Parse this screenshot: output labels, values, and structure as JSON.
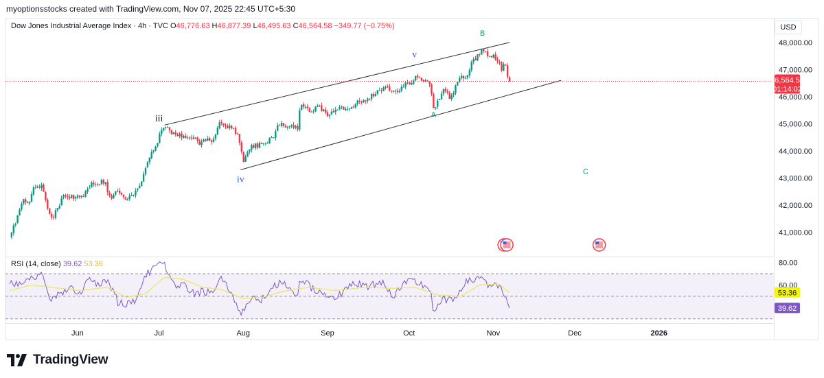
{
  "header": {
    "attribution": "myoptionsstocks created with TradingView.com, Nov 07, 2025 22:45 UTC+5:30"
  },
  "legend": {
    "symbol": "Dow Jones Industrial Average Index · 4h · TVC",
    "open_label": "O",
    "open": "46,776.63",
    "high_label": "H",
    "high": "46,877.39",
    "low_label": "L",
    "low": "46,495.63",
    "close_label": "C",
    "close": "46,564.58",
    "change": "−349.77 (−0.75%)"
  },
  "currency_button": "USD",
  "price_badge": {
    "price": "46,564.58",
    "countdown": "01:14:02"
  },
  "rsi_legend": {
    "label": "RSI (14, close)",
    "rsi_value": "39.62",
    "ma_value": "53.36"
  },
  "brand": {
    "name": "TradingView"
  },
  "colors": {
    "up": "#089981",
    "down": "#f23645",
    "rsi": "#7e57c2",
    "rsi_ma": "#e8e85c",
    "wave_blue": "#2962ff",
    "wave_teal": "#089981"
  },
  "event_markers": {
    "icon": "us-flag-icon",
    "dates": [
      "2025-11-05",
      "2025-11-06",
      "2025-12-10"
    ]
  },
  "chart_data": [
    {
      "type": "candlestick",
      "title": "Dow Jones Industrial Average Index · 4h · TVC",
      "x_ticks": [
        "Jun",
        "Jul",
        "Aug",
        "Sep",
        "Oct",
        "Nov",
        "Dec",
        "2026"
      ],
      "x_tick_dates": [
        "2025-06-01",
        "2025-07-01",
        "2025-08-01",
        "2025-09-01",
        "2025-10-01",
        "2025-11-01",
        "2025-12-01",
        "2026-01-01"
      ],
      "xlim": [
        "2025-05-06",
        "2026-02-10"
      ],
      "y_ticks": [
        "41,000.00",
        "42,000.00",
        "43,000.00",
        "44,000.00",
        "45,000.00",
        "46,000.00",
        "47,000.00",
        "48,000.00"
      ],
      "y_tick_values": [
        41000,
        42000,
        43000,
        44000,
        45000,
        46000,
        47000,
        48000
      ],
      "ylim": [
        40250,
        48350
      ],
      "last_price": 46564.58,
      "path_date_range": [
        "2025-05-07",
        "2025-11-07"
      ],
      "price_path": [
        [
          "2025-05-07",
          40800
        ],
        [
          "2025-05-09",
          41300
        ],
        [
          "2025-05-12",
          42150
        ],
        [
          "2025-05-14",
          42100
        ],
        [
          "2025-05-16",
          42650
        ],
        [
          "2025-05-19",
          42700
        ],
        [
          "2025-05-21",
          41800
        ],
        [
          "2025-05-22",
          41650
        ],
        [
          "2025-05-23",
          41550
        ],
        [
          "2025-05-27",
          42350
        ],
        [
          "2025-05-29",
          42300
        ],
        [
          "2025-06-02",
          42300
        ],
        [
          "2025-06-04",
          42450
        ],
        [
          "2025-06-06",
          42750
        ],
        [
          "2025-06-09",
          42800
        ],
        [
          "2025-06-11",
          42900
        ],
        [
          "2025-06-13",
          42250
        ],
        [
          "2025-06-16",
          42550
        ],
        [
          "2025-06-18",
          42200
        ],
        [
          "2025-06-20",
          42250
        ],
        [
          "2025-06-23",
          42550
        ],
        [
          "2025-06-25",
          43000
        ],
        [
          "2025-06-27",
          43700
        ],
        [
          "2025-06-30",
          44150
        ],
        [
          "2025-07-01",
          44600
        ],
        [
          "2025-07-03",
          44900
        ],
        [
          "2025-07-07",
          44550
        ],
        [
          "2025-07-09",
          44600
        ],
        [
          "2025-07-11",
          44400
        ],
        [
          "2025-07-14",
          44450
        ],
        [
          "2025-07-16",
          44200
        ],
        [
          "2025-07-18",
          44400
        ],
        [
          "2025-07-21",
          44350
        ],
        [
          "2025-07-23",
          45050
        ],
        [
          "2025-07-25",
          44950
        ],
        [
          "2025-07-28",
          44850
        ],
        [
          "2025-07-30",
          44600
        ],
        [
          "2025-08-01",
          43600
        ],
        [
          "2025-08-04",
          44150
        ],
        [
          "2025-08-06",
          44200
        ],
        [
          "2025-08-08",
          44200
        ],
        [
          "2025-08-12",
          44500
        ],
        [
          "2025-08-14",
          44950
        ],
        [
          "2025-08-15",
          44950
        ],
        [
          "2025-08-19",
          44900
        ],
        [
          "2025-08-21",
          44800
        ],
        [
          "2025-08-22",
          45650
        ],
        [
          "2025-08-26",
          45500
        ],
        [
          "2025-08-28",
          45650
        ],
        [
          "2025-09-02",
          45300
        ],
        [
          "2025-09-04",
          45600
        ],
        [
          "2025-09-08",
          45500
        ],
        [
          "2025-09-10",
          45600
        ],
        [
          "2025-09-12",
          45850
        ],
        [
          "2025-09-16",
          45900
        ],
        [
          "2025-09-18",
          46100
        ],
        [
          "2025-09-22",
          46350
        ],
        [
          "2025-09-24",
          46250
        ],
        [
          "2025-09-26",
          46200
        ],
        [
          "2025-09-30",
          46450
        ],
        [
          "2025-10-02",
          46550
        ],
        [
          "2025-10-03",
          46750
        ],
        [
          "2025-10-06",
          46650
        ],
        [
          "2025-10-08",
          46650
        ],
        [
          "2025-10-09",
          46400
        ],
        [
          "2025-10-10",
          45500
        ],
        [
          "2025-10-13",
          46100
        ],
        [
          "2025-10-14",
          46250
        ],
        [
          "2025-10-16",
          45950
        ],
        [
          "2025-10-20",
          46700
        ],
        [
          "2025-10-22",
          46650
        ],
        [
          "2025-10-24",
          47250
        ],
        [
          "2025-10-27",
          47600
        ],
        [
          "2025-10-28",
          47750
        ],
        [
          "2025-10-29",
          47600
        ],
        [
          "2025-10-30",
          47500
        ],
        [
          "2025-10-31",
          47550
        ],
        [
          "2025-11-03",
          47300
        ],
        [
          "2025-11-04",
          47000
        ],
        [
          "2025-11-05",
          47300
        ],
        [
          "2025-11-06",
          46900
        ],
        [
          "2025-11-07",
          46564.58
        ]
      ],
      "lines": [
        {
          "kind": "upper-channel",
          "points": [
            [
              "2025-07-03",
              44950
            ],
            [
              "2025-11-07",
              48000
            ]
          ]
        },
        {
          "kind": "lower-channel",
          "points": [
            [
              "2025-07-31",
              43300
            ],
            [
              "2025-11-26",
              46600
            ]
          ]
        }
      ],
      "annotations": [
        {
          "text": "iii",
          "date": "2025-07-01",
          "price": 45100,
          "color": "#131722"
        },
        {
          "text": "iv",
          "date": "2025-07-31",
          "price": 42850,
          "color": "#2962ff"
        },
        {
          "text": "v",
          "date": "2025-10-03",
          "price": 47450,
          "color": "#2962ff"
        },
        {
          "text": "A",
          "date": "2025-10-10",
          "price": 45250,
          "color": "#089981"
        },
        {
          "text": "B",
          "date": "2025-10-28",
          "price": 48250,
          "color": "#089981"
        },
        {
          "text": "C",
          "date": "2025-12-05",
          "price": 43150,
          "color": "#089981"
        }
      ]
    },
    {
      "type": "line",
      "title": "RSI (14, close)",
      "y_ticks": [
        "80.00",
        "60.00"
      ],
      "y_tick_values": [
        80,
        60
      ],
      "ylim": [
        28,
        84
      ],
      "levels": [
        70,
        50,
        30
      ],
      "last_values": {
        "RSI": 39.62,
        "RSI-based MA": 53.36
      },
      "path_date_range": [
        "2025-05-07",
        "2025-11-07"
      ],
      "series": [
        {
          "name": "RSI",
          "color": "#7e57c2",
          "points": [
            [
              "2025-05-07",
              61
            ],
            [
              "2025-05-12",
              63
            ],
            [
              "2025-05-15",
              67
            ],
            [
              "2025-05-19",
              68
            ],
            [
              "2025-05-22",
              47
            ],
            [
              "2025-05-26",
              52
            ],
            [
              "2025-05-29",
              59
            ],
            [
              "2025-06-02",
              53
            ],
            [
              "2025-06-05",
              64
            ],
            [
              "2025-06-09",
              60
            ],
            [
              "2025-06-12",
              65
            ],
            [
              "2025-06-16",
              44
            ],
            [
              "2025-06-19",
              43
            ],
            [
              "2025-06-23",
              48
            ],
            [
              "2025-06-26",
              69
            ],
            [
              "2025-06-30",
              77
            ],
            [
              "2025-07-03",
              78
            ],
            [
              "2025-07-07",
              57
            ],
            [
              "2025-07-10",
              60
            ],
            [
              "2025-07-14",
              52
            ],
            [
              "2025-07-17",
              55
            ],
            [
              "2025-07-21",
              52
            ],
            [
              "2025-07-24",
              66
            ],
            [
              "2025-07-28",
              51
            ],
            [
              "2025-07-31",
              34
            ],
            [
              "2025-08-04",
              50
            ],
            [
              "2025-08-07",
              45
            ],
            [
              "2025-08-11",
              55
            ],
            [
              "2025-08-14",
              62
            ],
            [
              "2025-08-18",
              58
            ],
            [
              "2025-08-21",
              50
            ],
            [
              "2025-08-22",
              66
            ],
            [
              "2025-08-26",
              58
            ],
            [
              "2025-08-29",
              54
            ],
            [
              "2025-09-03",
              49
            ],
            [
              "2025-09-08",
              55
            ],
            [
              "2025-09-11",
              63
            ],
            [
              "2025-09-15",
              58
            ],
            [
              "2025-09-18",
              61
            ],
            [
              "2025-09-22",
              62
            ],
            [
              "2025-09-25",
              50
            ],
            [
              "2025-09-29",
              60
            ],
            [
              "2025-10-02",
              64
            ],
            [
              "2025-10-06",
              60
            ],
            [
              "2025-10-09",
              56
            ],
            [
              "2025-10-10",
              35
            ],
            [
              "2025-10-14",
              48
            ],
            [
              "2025-10-17",
              45
            ],
            [
              "2025-10-21",
              61
            ],
            [
              "2025-10-24",
              64
            ],
            [
              "2025-10-28",
              68
            ],
            [
              "2025-10-30",
              60
            ],
            [
              "2025-11-03",
              58
            ],
            [
              "2025-11-05",
              52
            ],
            [
              "2025-11-07",
              39.62
            ]
          ]
        },
        {
          "name": "RSI-based MA",
          "color": "#e8e85c",
          "points": [
            [
              "2025-05-07",
              55
            ],
            [
              "2025-05-15",
              60
            ],
            [
              "2025-05-22",
              58
            ],
            [
              "2025-06-02",
              55
            ],
            [
              "2025-06-12",
              58
            ],
            [
              "2025-06-19",
              49
            ],
            [
              "2025-06-26",
              52
            ],
            [
              "2025-07-03",
              67
            ],
            [
              "2025-07-10",
              65
            ],
            [
              "2025-07-17",
              58
            ],
            [
              "2025-07-24",
              56
            ],
            [
              "2025-08-01",
              48
            ],
            [
              "2025-08-08",
              49
            ],
            [
              "2025-08-15",
              54
            ],
            [
              "2025-08-25",
              58
            ],
            [
              "2025-09-04",
              55
            ],
            [
              "2025-09-15",
              58
            ],
            [
              "2025-09-25",
              57
            ],
            [
              "2025-10-03",
              58
            ],
            [
              "2025-10-12",
              51
            ],
            [
              "2025-10-20",
              50
            ],
            [
              "2025-10-27",
              60
            ],
            [
              "2025-11-03",
              61
            ],
            [
              "2025-11-07",
              53.36
            ]
          ]
        }
      ]
    }
  ]
}
